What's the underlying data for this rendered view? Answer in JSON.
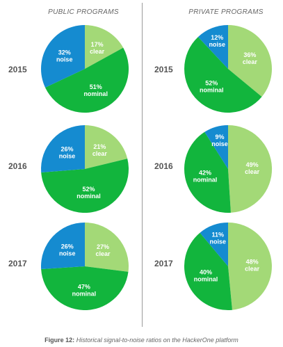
{
  "columns": [
    "PUBLIC PROGRAMS",
    "PRIVATE PROGRAMS"
  ],
  "years": [
    "2015",
    "2016",
    "2017"
  ],
  "caption": {
    "label": "Figure 12:",
    "text": "Historical signal-to-noise ratios on the HackerOne platform"
  },
  "colors": {
    "clear": "#a3d977",
    "nominal": "#12b53d",
    "noise": "#158bd0"
  },
  "chart_data": [
    {
      "type": "pie",
      "group": "PUBLIC PROGRAMS",
      "year": "2015",
      "slices": [
        {
          "pct": "17%",
          "name": "clear",
          "value": 17
        },
        {
          "pct": "51%",
          "name": "nominal",
          "value": 51
        },
        {
          "pct": "32%",
          "name": "noise",
          "value": 32
        }
      ]
    },
    {
      "type": "pie",
      "group": "PUBLIC PROGRAMS",
      "year": "2016",
      "slices": [
        {
          "pct": "21%",
          "name": "clear",
          "value": 21
        },
        {
          "pct": "52%",
          "name": "nominal",
          "value": 52
        },
        {
          "pct": "26%",
          "name": "noise",
          "value": 26
        }
      ]
    },
    {
      "type": "pie",
      "group": "PUBLIC PROGRAMS",
      "year": "2017",
      "slices": [
        {
          "pct": "27%",
          "name": "clear",
          "value": 27
        },
        {
          "pct": "47%",
          "name": "nominal",
          "value": 47
        },
        {
          "pct": "26%",
          "name": "noise",
          "value": 26
        }
      ]
    },
    {
      "type": "pie",
      "group": "PRIVATE PROGRAMS",
      "year": "2015",
      "slices": [
        {
          "pct": "36%",
          "name": "clear",
          "value": 36
        },
        {
          "pct": "52%",
          "name": "nominal",
          "value": 52
        },
        {
          "pct": "12%",
          "name": "noise",
          "value": 12
        }
      ]
    },
    {
      "type": "pie",
      "group": "PRIVATE PROGRAMS",
      "year": "2016",
      "slices": [
        {
          "pct": "49%",
          "name": "clear",
          "value": 49
        },
        {
          "pct": "42%",
          "name": "nominal",
          "value": 42
        },
        {
          "pct": "9%",
          "name": "noise",
          "value": 9
        }
      ]
    },
    {
      "type": "pie",
      "group": "PRIVATE PROGRAMS",
      "year": "2017",
      "slices": [
        {
          "pct": "48%",
          "name": "clear",
          "value": 48
        },
        {
          "pct": "40%",
          "name": "nominal",
          "value": 40
        },
        {
          "pct": "11%",
          "name": "noise",
          "value": 11
        }
      ]
    }
  ]
}
